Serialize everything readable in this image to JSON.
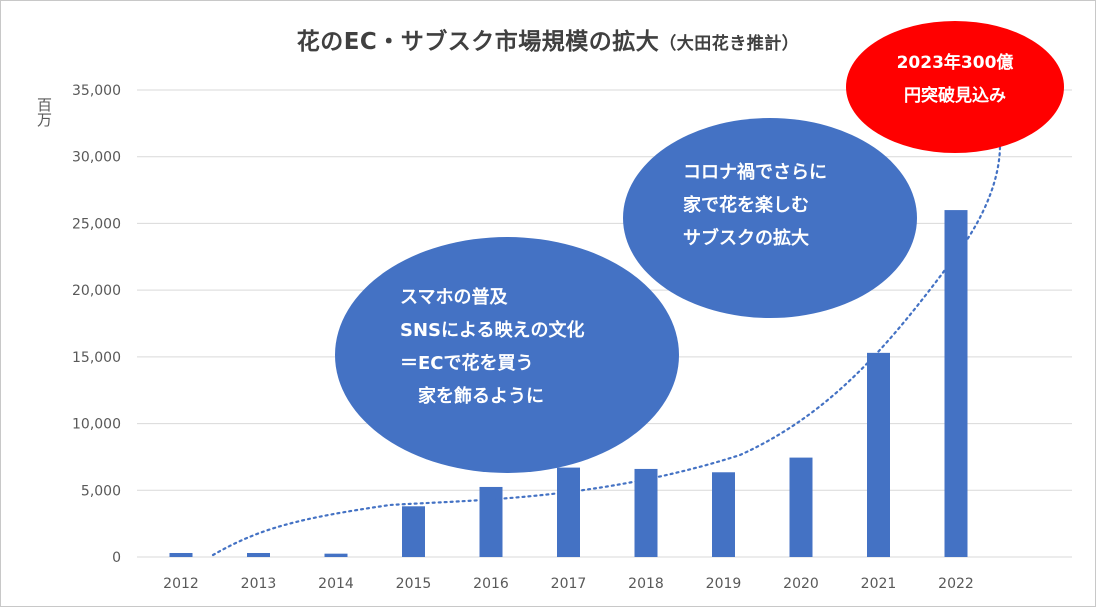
{
  "chart_data": {
    "type": "bar",
    "title": "花のEC・サブスク市場規模の拡大",
    "subtitle": "（大田花き推計）",
    "ylabel": "百万",
    "xlabel": "",
    "categories": [
      "2012",
      "2013",
      "2014",
      "2015",
      "2016",
      "2017",
      "2018",
      "2019",
      "2020",
      "2021",
      "2022"
    ],
    "values": [
      300,
      300,
      250,
      3800,
      5250,
      6700,
      6600,
      6350,
      7450,
      15300,
      26000
    ],
    "ylim": [
      0,
      35000
    ],
    "yticks": [
      0,
      5000,
      10000,
      15000,
      20000,
      25000,
      30000,
      35000
    ],
    "ytick_labels": [
      "0",
      "5,000",
      "10,000",
      "15,000",
      "20,000",
      "25,000",
      "30,000",
      "35,000"
    ],
    "grid": true,
    "legend": "none",
    "trendline": "dotted",
    "bar_color": "#4472c4",
    "annotations": [
      {
        "lines": [
          "スマホの普及",
          "SNSによる映えの文化",
          "＝ECで花を買う",
          "　家を飾るように"
        ],
        "color": "#4472c4"
      },
      {
        "lines": [
          "コロナ禍でさらに",
          "家で花を楽しむ",
          "サブスクの拡大"
        ],
        "color": "#4472c4"
      },
      {
        "lines": [
          "2023年300億",
          "円突破見込み"
        ],
        "color": "#ff0000"
      }
    ]
  }
}
